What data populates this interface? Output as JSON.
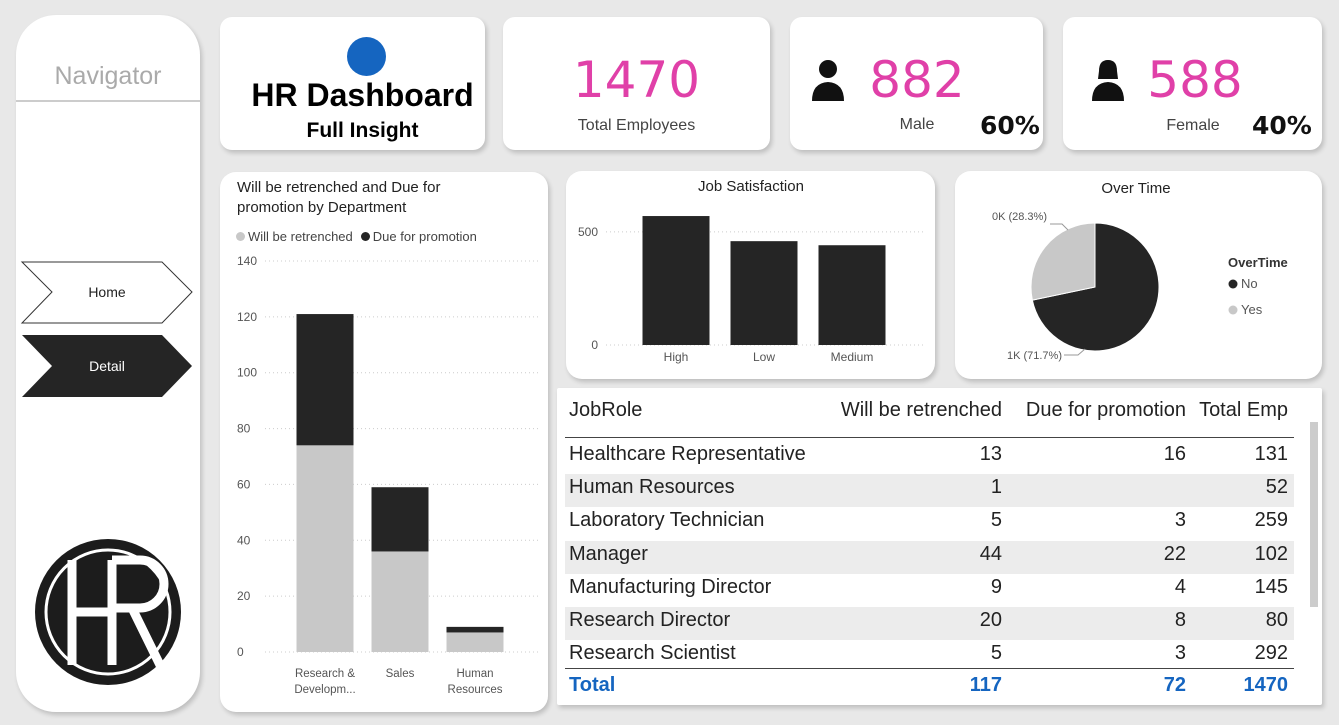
{
  "nav": {
    "title": "Navigator",
    "items": [
      "Home",
      "Detail"
    ]
  },
  "header": {
    "title": "HR Dashboard",
    "subtitle": "Full Insight"
  },
  "kpis": [
    {
      "value": 1470,
      "label": "Total Employees"
    },
    {
      "value": 882,
      "label": "Male",
      "share": "60%"
    },
    {
      "value": 588,
      "label": "Female",
      "share": "40%"
    }
  ],
  "chart_data": [
    {
      "type": "stacked_bar",
      "title": "Will be retrenched and Due for promotion by Department",
      "categories": [
        "Research & Developm...",
        "Sales",
        "Human Resources"
      ],
      "series": [
        {
          "name": "Will be retrenched",
          "color": "#c8c8c8",
          "values": [
            74,
            36,
            7
          ]
        },
        {
          "name": "Due for promotion",
          "color": "#252525",
          "values": [
            47,
            23,
            2
          ]
        }
      ],
      "ylim": [
        0,
        140
      ],
      "yticks": [
        0,
        20,
        40,
        60,
        80,
        100,
        120,
        140
      ],
      "grid": true,
      "legend": "top"
    },
    {
      "type": "bar",
      "title": "Job Satisfaction",
      "categories": [
        "High",
        "Low",
        "Medium"
      ],
      "values": [
        570,
        459,
        441
      ],
      "color": "#252525",
      "ylim": [
        0,
        610
      ],
      "yticks": [
        0,
        500
      ],
      "grid": true
    },
    {
      "type": "pie",
      "title": "Over Time",
      "legend_title": "OverTime",
      "categories": [
        "No",
        "Yes"
      ],
      "values": [
        1054,
        416
      ],
      "value_labels": [
        "1K (71.7%)",
        "0K (28.3%)"
      ],
      "colors": [
        "#252525",
        "#c8c8c8"
      ],
      "legend": "right"
    }
  ],
  "table": {
    "columns": [
      "JobRole",
      "Will be retrenched",
      "Due for promotion",
      "Total Emp"
    ],
    "rows": [
      [
        "Healthcare Representative",
        13,
        16,
        131
      ],
      [
        "Human Resources",
        1,
        null,
        52
      ],
      [
        "Laboratory Technician",
        5,
        3,
        259
      ],
      [
        "Manager",
        44,
        22,
        102
      ],
      [
        "Manufacturing Director",
        9,
        4,
        145
      ],
      [
        "Research Director",
        20,
        8,
        80
      ],
      [
        "Research Scientist",
        5,
        3,
        292
      ]
    ],
    "total": [
      "Total",
      117,
      72,
      1470
    ]
  }
}
